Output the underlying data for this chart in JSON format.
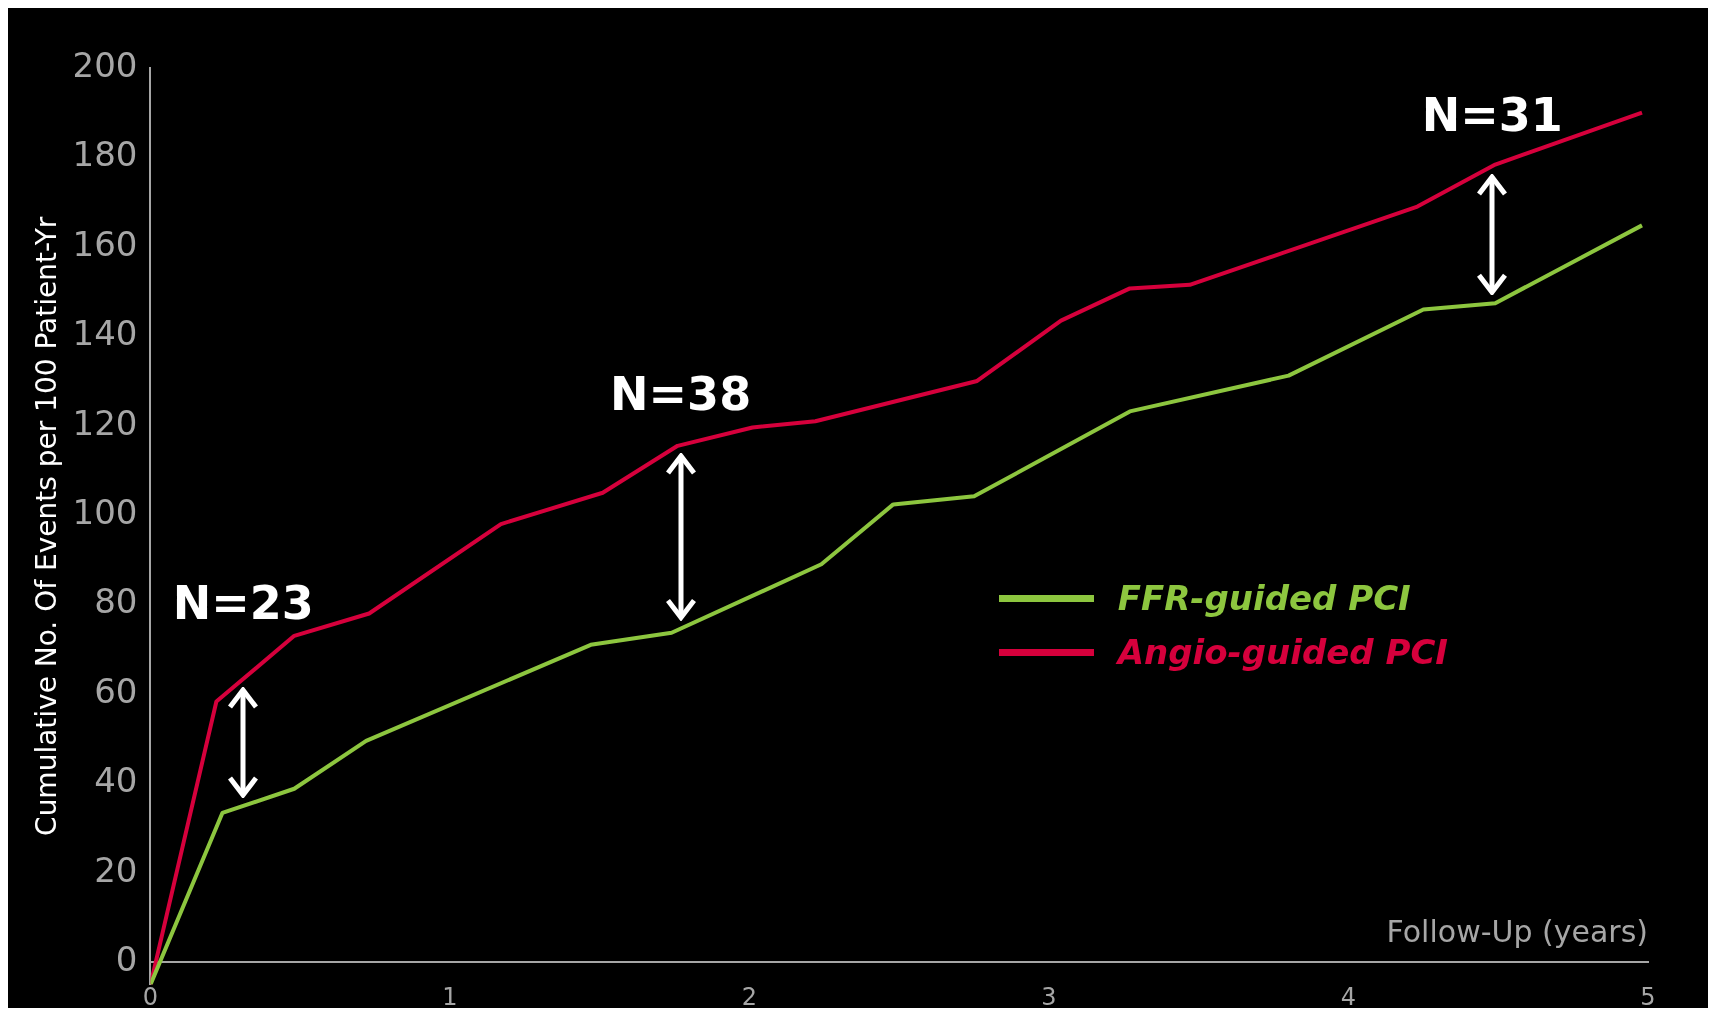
{
  "chart_data": {
    "type": "line",
    "ylabel": "Cumulative No. Of Events per 100 Patient-Yr",
    "xlabel": "Follow-Up (years)",
    "xlim": [
      0,
      5
    ],
    "xticks": [
      0,
      1,
      2,
      3,
      4,
      5
    ],
    "ylim": [
      -5,
      200
    ],
    "yticks": [
      0,
      20,
      40,
      60,
      80,
      100,
      120,
      140,
      160,
      180,
      200
    ],
    "grid": false,
    "legend": "right",
    "marker": "none",
    "line_style": "solid",
    "series": [
      {
        "name": "FFR-guided PCI",
        "color": "#8dc63f",
        "x": [
          0,
          0.24,
          0.48,
          0.72,
          1.47,
          1.74,
          2.24,
          2.48,
          2.75,
          3.27,
          3.8,
          4.25,
          4.49,
          4.98
        ],
        "values": [
          -5,
          33.4,
          38.8,
          49.5,
          71,
          73.7,
          89,
          102.4,
          104.2,
          123.2,
          131.2,
          146,
          147.4,
          164.8
        ]
      },
      {
        "name": "Angio-guided PCI",
        "color": "#d6003c",
        "x": [
          0,
          0.22,
          0.48,
          0.73,
          1.17,
          1.51,
          1.76,
          2.01,
          2.22,
          2.76,
          3.04,
          3.27,
          3.47,
          4.23,
          4.49,
          4.98
        ],
        "values": [
          -5,
          58.3,
          73,
          78,
          98,
          105,
          115.5,
          119.6,
          121,
          130,
          143.5,
          150.7,
          151.5,
          169,
          178.4,
          190
        ]
      }
    ],
    "annotations": [
      "N=23",
      "N=38",
      "N=31"
    ]
  }
}
